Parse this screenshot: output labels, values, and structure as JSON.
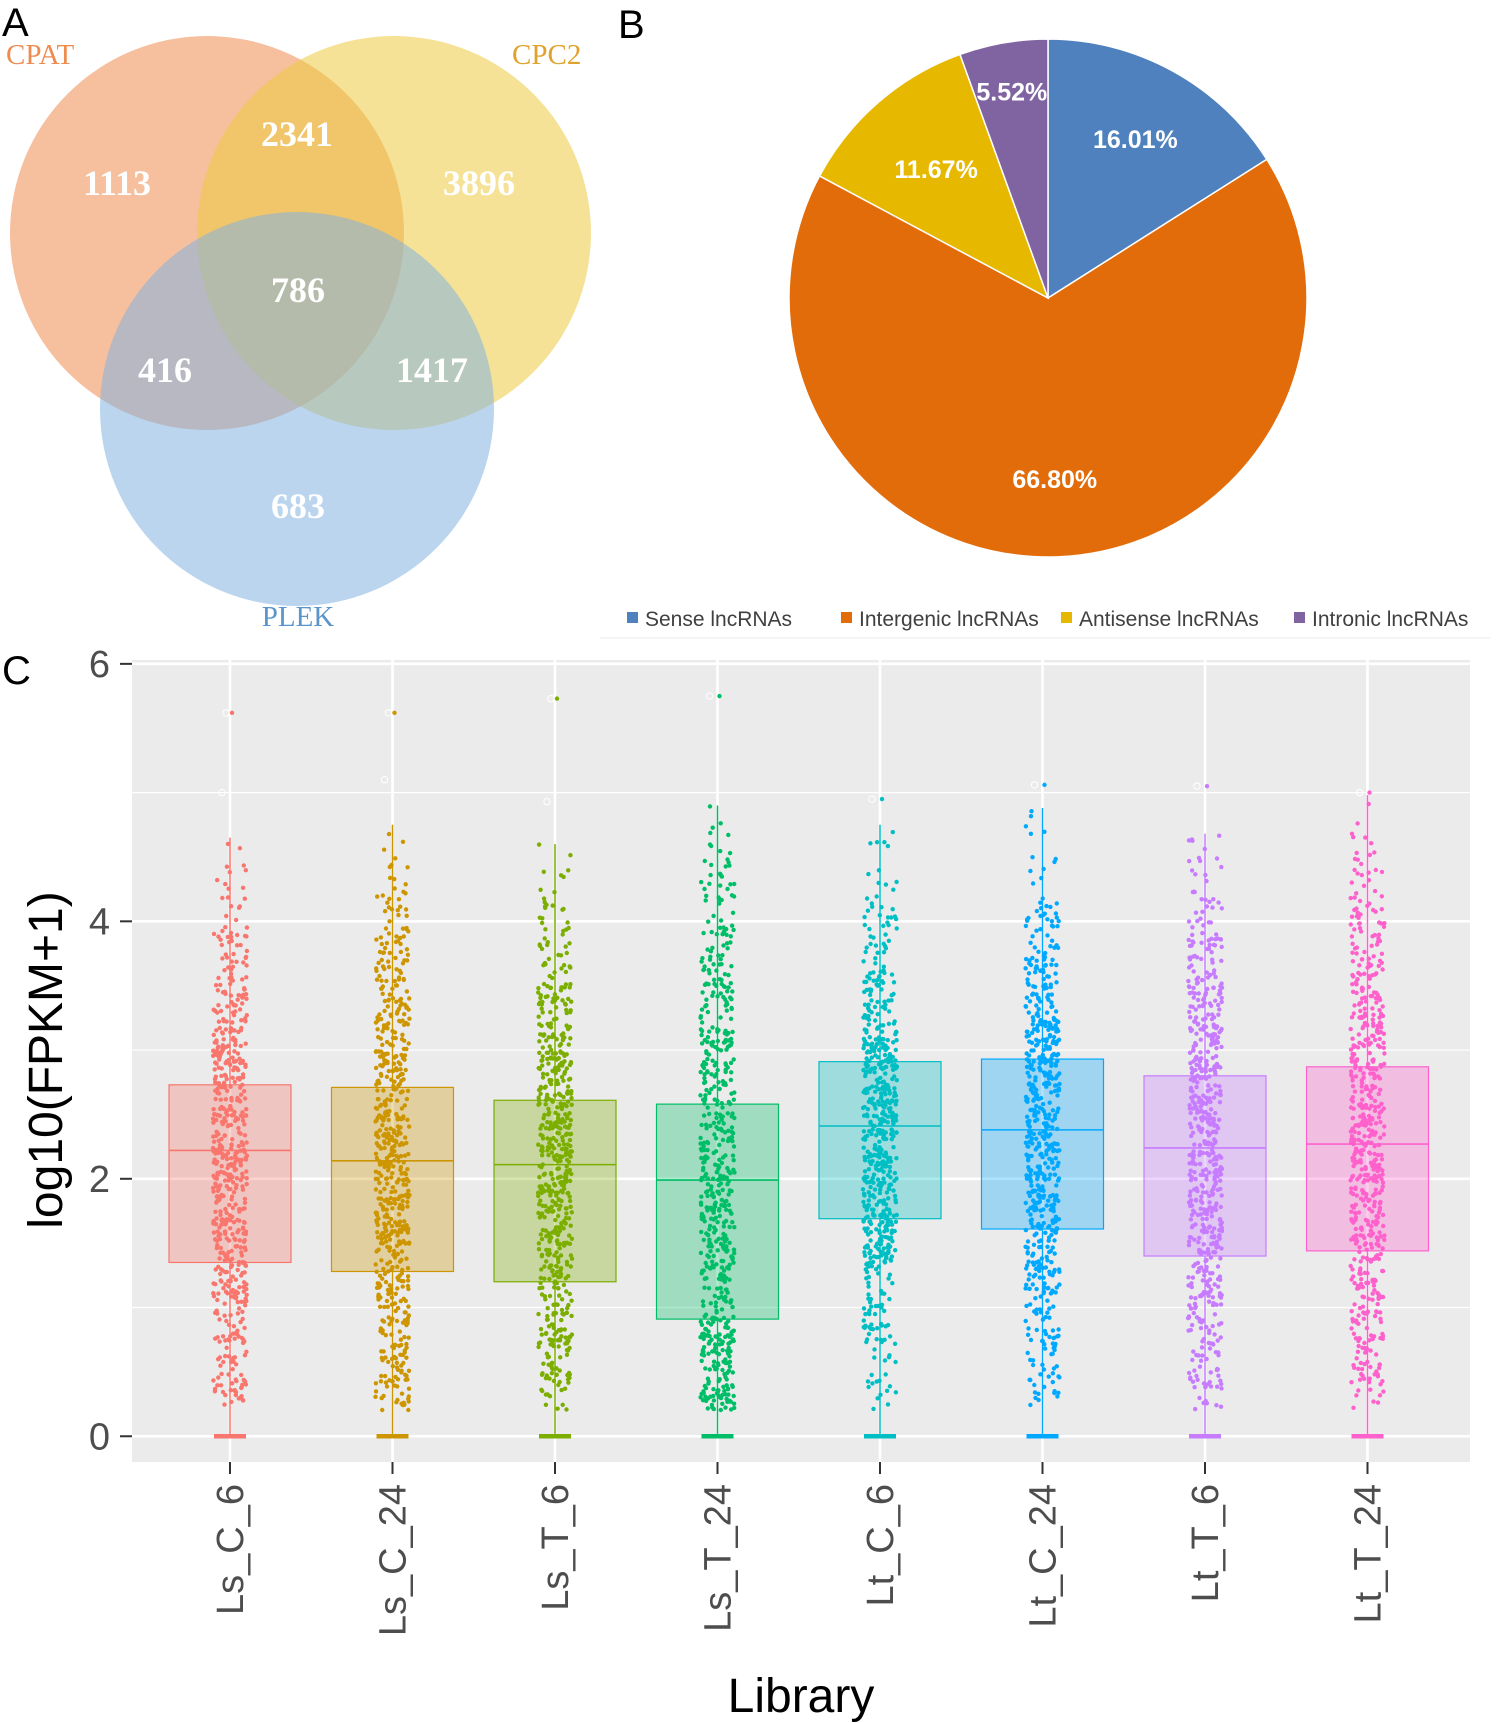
{
  "panels": {
    "a": "A",
    "b": "B",
    "c": "C"
  },
  "chart_data": [
    {
      "type": "venn",
      "sets": [
        {
          "name": "CPAT",
          "color": "#ee8b4f",
          "label_color": "#ee8b4f"
        },
        {
          "name": "CPC2",
          "color": "#eccb3f",
          "label_color": "#e0a22a"
        },
        {
          "name": "PLEK",
          "color": "#84b3e0",
          "label_color": "#5a95cc"
        }
      ],
      "regions": {
        "CPAT_only": "1113",
        "CPC2_only": "3896",
        "PLEK_only": "683",
        "CPAT_CPC2": "2341",
        "CPAT_PLEK": "416",
        "CPC2_PLEK": "1417",
        "all": "786"
      }
    },
    {
      "type": "pie",
      "slices": [
        {
          "name": "Sense lncRNAs",
          "value": 16.01,
          "label": "16.01%",
          "color": "#4e81bd"
        },
        {
          "name": "Intergenic lncRNAs",
          "value": 66.8,
          "label": "66.80%",
          "color": "#e36c0a"
        },
        {
          "name": "Antisense lncRNAs",
          "value": 11.67,
          "label": "11.67%",
          "color": "#e6b800"
        },
        {
          "name": "Intronic lncRNAs",
          "value": 5.52,
          "label": "5.52%",
          "color": "#8064a2"
        }
      ]
    },
    {
      "type": "boxplot",
      "xlabel": "Library",
      "ylabel": "log10(FPKM+1)",
      "ylim": [
        -0.2,
        6.03
      ],
      "yticks": [
        "0",
        "2",
        "4",
        "6"
      ],
      "categories": [
        "Ls_C_6",
        "Ls_C_24",
        "Ls_T_6",
        "Ls_T_24",
        "Lt_C_6",
        "Lt_C_24",
        "Lt_T_6",
        "Lt_T_24"
      ],
      "colors": [
        "#f8766d",
        "#cd9600",
        "#7cae00",
        "#00be67",
        "#00bfc4",
        "#00a9ff",
        "#c77cff",
        "#ff61cc"
      ],
      "boxes": [
        {
          "q1": 1.35,
          "median": 2.22,
          "q3": 2.73,
          "whisker_low": 0.0,
          "whisker_high": 4.65,
          "outliers": [
            5.0,
            5.62
          ]
        },
        {
          "q1": 1.28,
          "median": 2.14,
          "q3": 2.71,
          "whisker_low": 0.0,
          "whisker_high": 4.75,
          "outliers": [
            5.1,
            5.62
          ]
        },
        {
          "q1": 1.2,
          "median": 2.11,
          "q3": 2.61,
          "whisker_low": 0.0,
          "whisker_high": 4.6,
          "outliers": [
            4.93,
            5.73
          ]
        },
        {
          "q1": 0.91,
          "median": 1.99,
          "q3": 2.58,
          "whisker_low": 0.0,
          "whisker_high": 4.9,
          "outliers": [
            5.75
          ]
        },
        {
          "q1": 1.69,
          "median": 2.41,
          "q3": 2.91,
          "whisker_low": 0.0,
          "whisker_high": 4.75,
          "outliers": [
            4.95
          ]
        },
        {
          "q1": 1.61,
          "median": 2.38,
          "q3": 2.93,
          "whisker_low": 0.0,
          "whisker_high": 4.88,
          "outliers": [
            5.06
          ]
        },
        {
          "q1": 1.4,
          "median": 2.24,
          "q3": 2.8,
          "whisker_low": 0.0,
          "whisker_high": 4.68,
          "outliers": [
            5.05
          ]
        },
        {
          "q1": 1.44,
          "median": 2.27,
          "q3": 2.87,
          "whisker_low": 0.0,
          "whisker_high": 4.98,
          "outliers": [
            5.0
          ]
        }
      ]
    }
  ]
}
